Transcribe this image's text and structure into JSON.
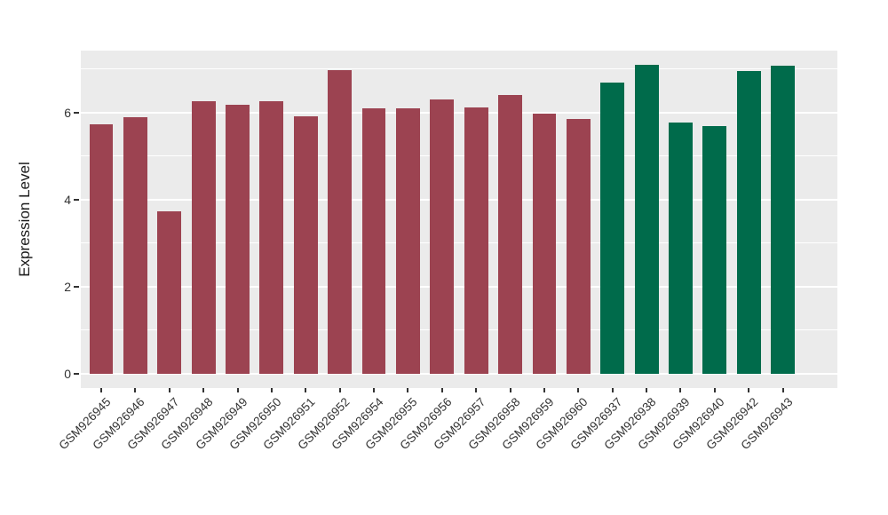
{
  "chart_data": {
    "type": "bar",
    "title": "",
    "xlabel": "",
    "ylabel": "Expression Level",
    "categories": [
      "GSM926945",
      "GSM926946",
      "GSM926947",
      "GSM926948",
      "GSM926949",
      "GSM926950",
      "GSM926951",
      "GSM926952",
      "GSM926954",
      "GSM926955",
      "GSM926956",
      "GSM926957",
      "GSM926958",
      "GSM926959",
      "GSM926960",
      "GSM926937",
      "GSM926938",
      "GSM926939",
      "GSM926940",
      "GSM926942",
      "GSM926943"
    ],
    "values": [
      5.72,
      5.89,
      3.73,
      6.26,
      6.17,
      6.26,
      5.9,
      6.97,
      6.09,
      6.09,
      6.3,
      6.12,
      6.39,
      5.96,
      5.85,
      6.68,
      7.1,
      5.76,
      5.69,
      6.95,
      7.07
    ],
    "bar_colors": [
      "#9C4351",
      "#9C4351",
      "#9C4351",
      "#9C4351",
      "#9C4351",
      "#9C4351",
      "#9C4351",
      "#9C4351",
      "#9C4351",
      "#9C4351",
      "#9C4351",
      "#9C4351",
      "#9C4351",
      "#9C4351",
      "#9C4351",
      "#006B4B",
      "#006B4B",
      "#006B4B",
      "#006B4B",
      "#006B4B",
      "#006B4B"
    ],
    "group_color_legend": {
      "red_group_color": "#9C4351",
      "green_group_color": "#006B4B"
    },
    "yticks": [
      0,
      2,
      4,
      6
    ],
    "minor_yticks": [
      1,
      3,
      5,
      7
    ],
    "ylim": [
      -0.36,
      7.43
    ],
    "bar_width_ratio": 0.7,
    "grid": true,
    "legend_position": "none",
    "panel_background": "#EBEBEB",
    "gridline_color": "#FFFFFF",
    "axis_text_color": "#333333"
  }
}
